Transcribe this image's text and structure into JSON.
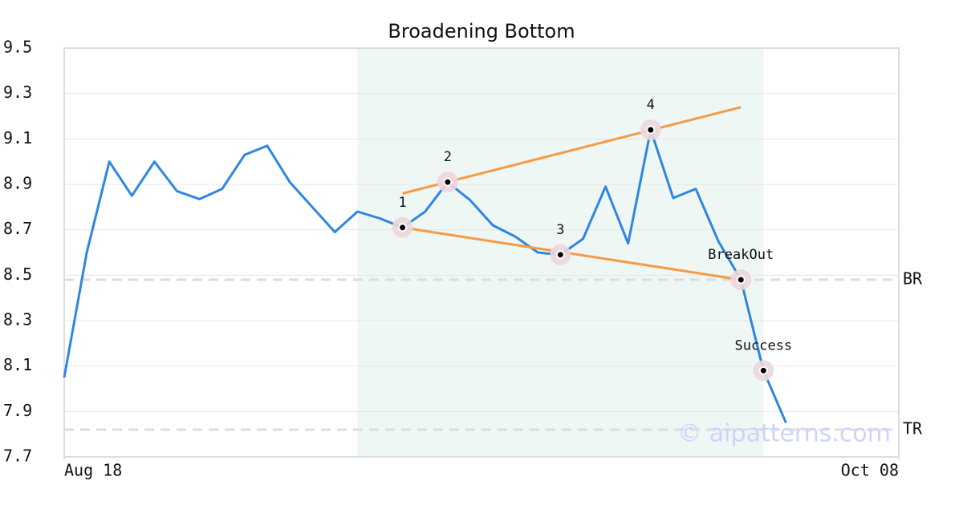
{
  "chart_data": {
    "type": "line",
    "title": "Broadening Bottom",
    "x": [
      0,
      1,
      2,
      3,
      4,
      5,
      6,
      7,
      8,
      9,
      10,
      11,
      12,
      13,
      14,
      15,
      16,
      17,
      18,
      19,
      20,
      21,
      22,
      23,
      24,
      25,
      26,
      27,
      28,
      29,
      30,
      31,
      32
    ],
    "series": [
      {
        "color": "#2f86e0",
        "values": [
          8.05,
          8.6,
          9.0,
          8.85,
          9.0,
          8.87,
          8.835,
          8.88,
          9.03,
          9.07,
          8.91,
          8.8,
          8.69,
          8.78,
          8.75,
          8.71,
          8.78,
          8.91,
          8.83,
          8.72,
          8.67,
          8.6,
          8.59,
          8.66,
          8.89,
          8.64,
          9.14,
          8.84,
          8.88,
          8.65,
          8.48,
          8.08,
          7.85
        ]
      }
    ],
    "xlim": [
      0,
      37
    ],
    "xticks": [
      {
        "value": 0,
        "label": "Aug 18"
      },
      {
        "value": 37,
        "label": "Oct 08"
      }
    ],
    "ylim": [
      7.7,
      9.5
    ],
    "yticks": [
      7.7,
      7.9,
      8.1,
      8.3,
      8.5,
      8.7,
      8.9,
      9.1,
      9.3,
      9.5
    ],
    "grid": true,
    "shaded_span": {
      "x": [
        13,
        31
      ],
      "color": "#eef7f3"
    },
    "trendlines": [
      {
        "color": "#f59a45",
        "x": [
          15,
          30
        ],
        "y": [
          8.86,
          9.24
        ]
      },
      {
        "color": "#f59a45",
        "x": [
          15,
          30
        ],
        "y": [
          8.71,
          8.48
        ]
      }
    ],
    "hlines": [
      {
        "value": 8.48,
        "label": "BR"
      },
      {
        "value": 7.82,
        "label": "TR"
      }
    ],
    "annotations": [
      {
        "label": "1",
        "x": 15,
        "y": 8.71
      },
      {
        "label": "2",
        "x": 17,
        "y": 8.91
      },
      {
        "label": "3",
        "x": 22,
        "y": 8.59
      },
      {
        "label": "4",
        "x": 26,
        "y": 9.14
      },
      {
        "label": "BreakOut",
        "x": 30,
        "y": 8.48
      },
      {
        "label": "Success",
        "x": 31,
        "y": 8.08
      }
    ],
    "watermark": "© aipatterns.com"
  }
}
